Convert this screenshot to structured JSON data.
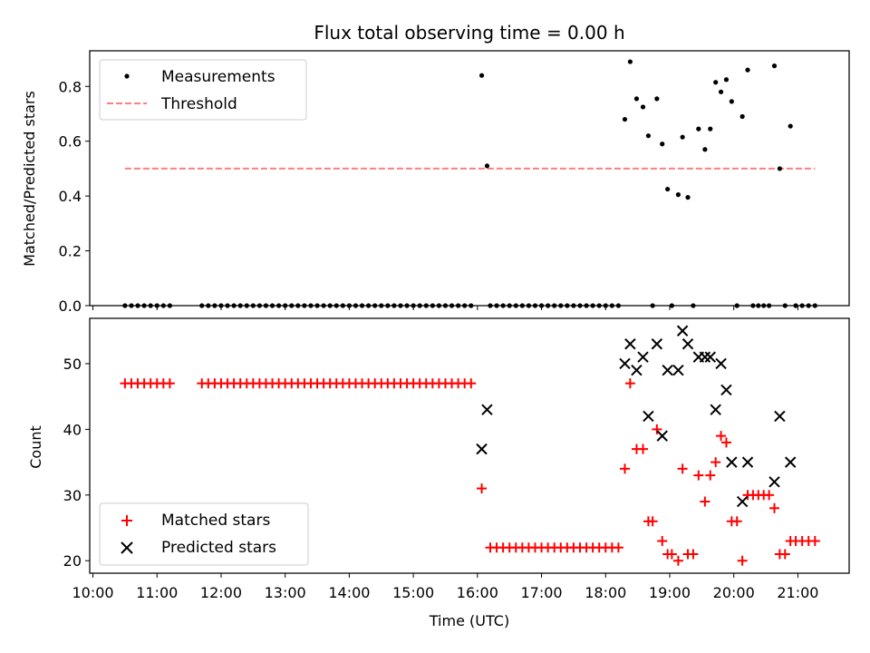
{
  "chart_data": [
    {
      "type": "scatter",
      "title": "Flux total observing time = 0.00 h",
      "xlabel": "",
      "ylabel": "Matched/Predicted stars",
      "ylim": [
        0.0,
        0.93
      ],
      "yticks": [
        0.0,
        0.2,
        0.4,
        0.6,
        0.8
      ],
      "ytick_labels": [
        "0.0",
        "0.2",
        "0.4",
        "0.6",
        "0.8"
      ],
      "legend_position": "top-left",
      "colors": {
        "measurements": "#000000",
        "threshold": "#ff7f7f"
      },
      "series": [
        {
          "name": "Measurements",
          "marker": "dot",
          "points": [
            [
              "10:30",
              0
            ],
            [
              "10:36",
              0
            ],
            [
              "10:42",
              0
            ],
            [
              "10:48",
              0
            ],
            [
              "10:54",
              0
            ],
            [
              "11:00",
              0
            ],
            [
              "11:06",
              0
            ],
            [
              "11:12",
              0
            ],
            [
              "11:42",
              0
            ],
            [
              "11:48",
              0
            ],
            [
              "11:54",
              0
            ],
            [
              "12:00",
              0
            ],
            [
              "12:06",
              0
            ],
            [
              "12:12",
              0
            ],
            [
              "12:18",
              0
            ],
            [
              "12:24",
              0
            ],
            [
              "12:30",
              0
            ],
            [
              "12:36",
              0
            ],
            [
              "12:42",
              0
            ],
            [
              "12:48",
              0
            ],
            [
              "12:54",
              0
            ],
            [
              "13:00",
              0
            ],
            [
              "13:06",
              0
            ],
            [
              "13:12",
              0
            ],
            [
              "13:18",
              0
            ],
            [
              "13:24",
              0
            ],
            [
              "13:30",
              0
            ],
            [
              "13:36",
              0
            ],
            [
              "13:42",
              0
            ],
            [
              "13:48",
              0
            ],
            [
              "13:54",
              0
            ],
            [
              "14:00",
              0
            ],
            [
              "14:06",
              0
            ],
            [
              "14:12",
              0
            ],
            [
              "14:18",
              0
            ],
            [
              "14:24",
              0
            ],
            [
              "14:30",
              0
            ],
            [
              "14:36",
              0
            ],
            [
              "14:42",
              0
            ],
            [
              "14:48",
              0
            ],
            [
              "14:54",
              0
            ],
            [
              "15:00",
              0
            ],
            [
              "15:06",
              0
            ],
            [
              "15:12",
              0
            ],
            [
              "15:18",
              0
            ],
            [
              "15:24",
              0
            ],
            [
              "15:30",
              0
            ],
            [
              "15:36",
              0
            ],
            [
              "15:42",
              0
            ],
            [
              "15:48",
              0
            ],
            [
              "15:54",
              0
            ],
            [
              "16:04",
              0.84
            ],
            [
              "16:09",
              0.51
            ],
            [
              "16:12",
              0
            ],
            [
              "16:18",
              0
            ],
            [
              "16:24",
              0
            ],
            [
              "16:30",
              0
            ],
            [
              "16:36",
              0
            ],
            [
              "16:42",
              0
            ],
            [
              "16:48",
              0
            ],
            [
              "16:54",
              0
            ],
            [
              "17:00",
              0
            ],
            [
              "17:06",
              0
            ],
            [
              "17:12",
              0
            ],
            [
              "17:18",
              0
            ],
            [
              "17:24",
              0
            ],
            [
              "17:30",
              0
            ],
            [
              "17:36",
              0
            ],
            [
              "17:42",
              0
            ],
            [
              "17:48",
              0
            ],
            [
              "17:54",
              0
            ],
            [
              "18:00",
              0
            ],
            [
              "18:06",
              0
            ],
            [
              "18:12",
              0
            ],
            [
              "18:18",
              0.68
            ],
            [
              "18:23",
              0.89
            ],
            [
              "18:29",
              0.755
            ],
            [
              "18:35",
              0.725
            ],
            [
              "18:40",
              0.62
            ],
            [
              "18:44",
              0
            ],
            [
              "18:48",
              0.755
            ],
            [
              "18:53",
              0.59
            ],
            [
              "18:58",
              0.425
            ],
            [
              "19:02",
              0
            ],
            [
              "19:08",
              0.405
            ],
            [
              "19:12",
              0.615
            ],
            [
              "19:17",
              0.395
            ],
            [
              "19:22",
              0
            ],
            [
              "19:27",
              0.645
            ],
            [
              "19:33",
              0.57
            ],
            [
              "19:38",
              0.645
            ],
            [
              "19:43",
              0.815
            ],
            [
              "19:48",
              0.78
            ],
            [
              "19:53",
              0.825
            ],
            [
              "19:58",
              0.745
            ],
            [
              "20:03",
              0
            ],
            [
              "20:08",
              0.69
            ],
            [
              "20:13",
              0.86
            ],
            [
              "20:18",
              0
            ],
            [
              "20:23",
              0
            ],
            [
              "20:28",
              0
            ],
            [
              "20:33",
              0
            ],
            [
              "20:38",
              0.875
            ],
            [
              "20:43",
              0.5
            ],
            [
              "20:48",
              0
            ],
            [
              "20:53",
              0.655
            ],
            [
              "20:58",
              0
            ],
            [
              "21:04",
              0
            ],
            [
              "21:10",
              0
            ],
            [
              "21:16",
              0
            ]
          ]
        },
        {
          "name": "Threshold",
          "style": "dashed",
          "points": [
            [
              "10:30",
              0.5
            ],
            [
              "21:16",
              0.5
            ]
          ]
        }
      ]
    },
    {
      "type": "scatter",
      "title": "",
      "xlabel": "Time (UTC)",
      "ylabel": "Count",
      "ylim": [
        18.1,
        56.9
      ],
      "yticks": [
        20,
        30,
        40,
        50
      ],
      "ytick_labels": [
        "20",
        "30",
        "40",
        "50"
      ],
      "xlim": [
        "09:57",
        "21:48"
      ],
      "xticks": [
        "10:00",
        "11:00",
        "12:00",
        "13:00",
        "14:00",
        "15:00",
        "16:00",
        "17:00",
        "18:00",
        "19:00",
        "20:00",
        "21:00"
      ],
      "xtick_labels": [
        "10:00",
        "11:00",
        "12:00",
        "13:00",
        "14:00",
        "15:00",
        "16:00",
        "17:00",
        "18:00",
        "19:00",
        "20:00",
        "21:00"
      ],
      "legend_position": "bottom-left",
      "colors": {
        "matched": "#ff0000",
        "predicted": "#000000"
      },
      "series": [
        {
          "name": "Matched stars",
          "marker": "plus",
          "points": [
            [
              "10:30",
              47
            ],
            [
              "10:36",
              47
            ],
            [
              "10:42",
              47
            ],
            [
              "10:48",
              47
            ],
            [
              "10:54",
              47
            ],
            [
              "11:00",
              47
            ],
            [
              "11:06",
              47
            ],
            [
              "11:12",
              47
            ],
            [
              "11:42",
              47
            ],
            [
              "11:48",
              47
            ],
            [
              "11:54",
              47
            ],
            [
              "12:00",
              47
            ],
            [
              "12:06",
              47
            ],
            [
              "12:12",
              47
            ],
            [
              "12:18",
              47
            ],
            [
              "12:24",
              47
            ],
            [
              "12:30",
              47
            ],
            [
              "12:36",
              47
            ],
            [
              "12:42",
              47
            ],
            [
              "12:48",
              47
            ],
            [
              "12:54",
              47
            ],
            [
              "13:00",
              47
            ],
            [
              "13:06",
              47
            ],
            [
              "13:12",
              47
            ],
            [
              "13:18",
              47
            ],
            [
              "13:24",
              47
            ],
            [
              "13:30",
              47
            ],
            [
              "13:36",
              47
            ],
            [
              "13:42",
              47
            ],
            [
              "13:48",
              47
            ],
            [
              "13:54",
              47
            ],
            [
              "14:00",
              47
            ],
            [
              "14:06",
              47
            ],
            [
              "14:12",
              47
            ],
            [
              "14:18",
              47
            ],
            [
              "14:24",
              47
            ],
            [
              "14:30",
              47
            ],
            [
              "14:36",
              47
            ],
            [
              "14:42",
              47
            ],
            [
              "14:48",
              47
            ],
            [
              "14:54",
              47
            ],
            [
              "15:00",
              47
            ],
            [
              "15:06",
              47
            ],
            [
              "15:12",
              47
            ],
            [
              "15:18",
              47
            ],
            [
              "15:24",
              47
            ],
            [
              "15:30",
              47
            ],
            [
              "15:36",
              47
            ],
            [
              "15:42",
              47
            ],
            [
              "15:48",
              47
            ],
            [
              "15:54",
              47
            ],
            [
              "16:04",
              31
            ],
            [
              "16:12",
              22
            ],
            [
              "16:18",
              22
            ],
            [
              "16:24",
              22
            ],
            [
              "16:30",
              22
            ],
            [
              "16:36",
              22
            ],
            [
              "16:42",
              22
            ],
            [
              "16:48",
              22
            ],
            [
              "16:54",
              22
            ],
            [
              "17:00",
              22
            ],
            [
              "17:06",
              22
            ],
            [
              "17:12",
              22
            ],
            [
              "17:18",
              22
            ],
            [
              "17:24",
              22
            ],
            [
              "17:30",
              22
            ],
            [
              "17:36",
              22
            ],
            [
              "17:42",
              22
            ],
            [
              "17:48",
              22
            ],
            [
              "17:54",
              22
            ],
            [
              "18:00",
              22
            ],
            [
              "18:06",
              22
            ],
            [
              "18:12",
              22
            ],
            [
              "18:18",
              34
            ],
            [
              "18:23",
              47
            ],
            [
              "18:29",
              37
            ],
            [
              "18:35",
              37
            ],
            [
              "18:40",
              26
            ],
            [
              "18:44",
              26
            ],
            [
              "18:48",
              40
            ],
            [
              "18:53",
              23
            ],
            [
              "18:58",
              21
            ],
            [
              "19:02",
              21
            ],
            [
              "19:08",
              20
            ],
            [
              "19:12",
              34
            ],
            [
              "19:17",
              21
            ],
            [
              "19:22",
              21
            ],
            [
              "19:27",
              33
            ],
            [
              "19:33",
              29
            ],
            [
              "19:38",
              33
            ],
            [
              "19:43",
              35
            ],
            [
              "19:48",
              39
            ],
            [
              "19:53",
              38
            ],
            [
              "19:58",
              26
            ],
            [
              "20:03",
              26
            ],
            [
              "20:08",
              20
            ],
            [
              "20:13",
              30
            ],
            [
              "20:18",
              30
            ],
            [
              "20:23",
              30
            ],
            [
              "20:28",
              30
            ],
            [
              "20:33",
              30
            ],
            [
              "20:38",
              28
            ],
            [
              "20:43",
              21
            ],
            [
              "20:48",
              21
            ],
            [
              "20:53",
              23
            ],
            [
              "20:58",
              23
            ],
            [
              "21:04",
              23
            ],
            [
              "21:10",
              23
            ],
            [
              "21:16",
              23
            ]
          ]
        },
        {
          "name": "Predicted stars",
          "marker": "x",
          "points": [
            [
              "16:04",
              37
            ],
            [
              "16:09",
              43
            ],
            [
              "18:18",
              50
            ],
            [
              "18:23",
              53
            ],
            [
              "18:29",
              49
            ],
            [
              "18:35",
              51
            ],
            [
              "18:40",
              42
            ],
            [
              "18:48",
              53
            ],
            [
              "18:53",
              39
            ],
            [
              "18:58",
              49
            ],
            [
              "19:08",
              49
            ],
            [
              "19:12",
              55
            ],
            [
              "19:17",
              53
            ],
            [
              "19:27",
              51
            ],
            [
              "19:33",
              51
            ],
            [
              "19:38",
              51
            ],
            [
              "19:43",
              43
            ],
            [
              "19:48",
              50
            ],
            [
              "19:53",
              46
            ],
            [
              "19:58",
              35
            ],
            [
              "20:08",
              29
            ],
            [
              "20:13",
              35
            ],
            [
              "20:38",
              32
            ],
            [
              "20:43",
              42
            ],
            [
              "20:53",
              35
            ]
          ]
        }
      ]
    }
  ]
}
